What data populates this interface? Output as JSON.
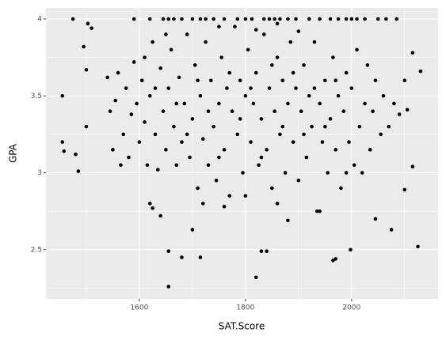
{
  "chart_data": {
    "type": "scatter",
    "x_label": "SAT.Score",
    "y_label": "GPA",
    "color": "#000000",
    "xlim": [
      1424,
      2163
    ],
    "ylim": [
      2.18,
      4.072
    ],
    "xticks": [
      1600,
      1800,
      2000
    ],
    "yticks": [
      2.5,
      3,
      3.5,
      4
    ],
    "xminor": [
      1500,
      1700,
      1900,
      2100
    ],
    "yminor": [
      2.25,
      2.75,
      3.25,
      3.75
    ],
    "grid": true,
    "x": [
      1455,
      1455,
      1458,
      1475,
      1480,
      1485,
      1495,
      1500,
      1500,
      1503,
      1510,
      1655,
      1820,
      1655,
      1680,
      1715,
      1700,
      1830,
      1840,
      2125,
      1998,
      1965,
      1970,
      2130,
      2115,
      2115,
      2100,
      2075,
      2045,
      2000,
      1640,
      1620,
      1625,
      1590,
      1620,
      1645,
      1655,
      1665,
      1680,
      1700,
      1715,
      1725,
      1740,
      1760,
      1785,
      1800,
      1812,
      1835,
      1845,
      1855,
      1865,
      1880,
      1895,
      1920,
      1940,
      1960,
      1975,
      1990,
      2010,
      2025,
      2050,
      2065,
      2085,
      1540,
      1545,
      1550,
      1555,
      1560,
      1565,
      1570,
      1575,
      1580,
      1585,
      1590,
      1595,
      1600,
      1605,
      1610,
      1615,
      1620,
      1625,
      1630,
      1635,
      1640,
      1645,
      1650,
      1655,
      1660,
      1665,
      1670,
      1675,
      1680,
      1685,
      1690,
      1695,
      1700,
      1705,
      1710,
      1715,
      1720,
      1725,
      1730,
      1735,
      1740,
      1745,
      1750,
      1755,
      1760,
      1765,
      1770,
      1775,
      1780,
      1785,
      1790,
      1795,
      1800,
      1805,
      1810,
      1815,
      1820,
      1825,
      1830,
      1835,
      1840,
      1845,
      1850,
      1855,
      1860,
      1865,
      1870,
      1875,
      1880,
      1885,
      1890,
      1895,
      1900,
      1905,
      1910,
      1915,
      1920,
      1925,
      1930,
      1935,
      1940,
      1945,
      1950,
      1955,
      1960,
      1965,
      1970,
      1975,
      1980,
      1985,
      1990,
      1995,
      2000,
      2005,
      2010,
      2015,
      2020,
      2025,
      2030,
      2035,
      2040,
      2045,
      2055,
      2060,
      2070,
      2080,
      2090,
      2100,
      2105,
      1610,
      1630,
      1650,
      1670,
      1690,
      1710,
      1730,
      1750,
      1770,
      1790,
      1810,
      1830,
      1850,
      1870,
      1890,
      1910,
      1930,
      1950,
      1970,
      1990,
      1720,
      1760,
      1800,
      1860,
      1940,
      1880,
      1750,
      1820,
      1900,
      1860
    ],
    "values": [
      3.5,
      3.2,
      3.14,
      4.0,
      3.12,
      3.01,
      3.82,
      3.67,
      3.3,
      3.97,
      3.94,
      2.26,
      2.32,
      2.49,
      2.45,
      2.45,
      2.63,
      2.49,
      2.49,
      2.52,
      2.5,
      2.43,
      2.44,
      3.66,
      3.78,
      3.04,
      2.89,
      2.63,
      2.7,
      4.0,
      2.72,
      2.8,
      2.77,
      4,
      4,
      4,
      4,
      4,
      4,
      4,
      4,
      4,
      4,
      4,
      4,
      4,
      4,
      4,
      4,
      4,
      4,
      4,
      4,
      4,
      4,
      4,
      4,
      4,
      4,
      4,
      4,
      4,
      4,
      3.62,
      3.4,
      3.15,
      3.47,
      3.65,
      3.05,
      3.25,
      3.55,
      3.1,
      3.38,
      3.72,
      3.45,
      3.2,
      3.6,
      3.33,
      3.05,
      3.5,
      3.85,
      3.25,
      3.02,
      3.68,
      3.4,
      3.15,
      3.55,
      3.8,
      3.3,
      3.05,
      3.62,
      3.2,
      3.45,
      3.9,
      3.1,
      3.35,
      3.7,
      2.9,
      3.5,
      3.22,
      3.85,
      3.05,
      3.6,
      3.3,
      2.95,
      3.45,
      3.75,
      3.15,
      3.55,
      2.85,
      3.4,
      3.95,
      3.25,
      3.6,
      3.0,
      3.5,
      3.8,
      3.2,
      3.45,
      3.65,
      3.05,
      3.35,
      3.9,
      3.15,
      3.55,
      2.9,
      3.4,
      3.75,
      3.25,
      3.6,
      3.0,
      3.45,
      3.85,
      3.2,
      3.55,
      2.95,
      3.4,
      3.7,
      3.1,
      3.5,
      3.3,
      3.85,
      2.75,
      3.45,
      3.2,
      3.6,
      3.0,
      3.35,
      3.75,
      3.15,
      3.5,
      2.9,
      3.4,
      3.65,
      3.2,
      3.55,
      3.05,
      3.8,
      3.3,
      3.0,
      3.45,
      3.7,
      3.15,
      3.4,
      3.6,
      3.25,
      3.5,
      3.3,
      3.45,
      3.38,
      3.6,
      3.41,
      3.75,
      3.55,
      3.9,
      3.45,
      3.25,
      3.6,
      3.4,
      3.1,
      3.65,
      3.35,
      3.55,
      3.1,
      3.7,
      3.3,
      3.65,
      3.25,
      3.55,
      3.3,
      3.6,
      3.0,
      2.8,
      2.78,
      2.85,
      2.8,
      2.75,
      2.69,
      3.95,
      3.93,
      3.92,
      3.97
    ]
  }
}
